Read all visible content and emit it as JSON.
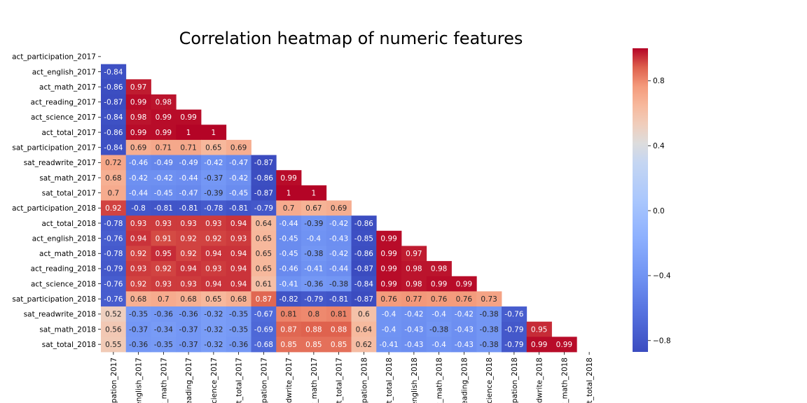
{
  "chart_data": {
    "type": "heatmap",
    "title": "Correlation heatmap of numeric features",
    "xlabel": "",
    "ylabel": "",
    "mask": "upper-triangle-and-diagonal",
    "row_labels": [
      "act_participation_2017",
      "act_english_2017",
      "act_math_2017",
      "act_reading_2017",
      "act_science_2017",
      "act_total_2017",
      "sat_participation_2017",
      "sat_readwrite_2017",
      "sat_math_2017",
      "sat_total_2017",
      "act_participation_2018",
      "act_total_2018",
      "act_english_2018",
      "act_math_2018",
      "act_reading_2018",
      "act_science_2018",
      "sat_participation_2018",
      "sat_readwrite_2018",
      "sat_math_2018",
      "sat_total_2018"
    ],
    "col_labels": [
      "pation_2017",
      "english_2017",
      "t_math_2017",
      "eading_2017",
      "science_2017",
      "t_total_2017",
      "pation_2017",
      "dwrite_2017",
      "t_math_2017",
      "t_total_2017",
      "pation_2018",
      "t_total_2018",
      "english_2018",
      "t_math_2018",
      "eading_2018",
      "science_2018",
      "pation_2018",
      "dwrite_2018",
      "t_math_2018",
      "t_total_2018"
    ],
    "values": [
      [],
      [
        -0.84
      ],
      [
        -0.86,
        0.97
      ],
      [
        -0.87,
        0.99,
        0.98
      ],
      [
        -0.84,
        0.98,
        0.99,
        0.99
      ],
      [
        -0.86,
        0.99,
        0.99,
        1,
        1
      ],
      [
        -0.84,
        0.69,
        0.71,
        0.71,
        0.65,
        0.69
      ],
      [
        0.72,
        -0.46,
        -0.49,
        -0.49,
        -0.42,
        -0.47,
        -0.87
      ],
      [
        0.68,
        -0.42,
        -0.42,
        -0.44,
        -0.37,
        -0.42,
        -0.86,
        0.99
      ],
      [
        0.7,
        -0.44,
        -0.45,
        -0.47,
        -0.39,
        -0.45,
        -0.87,
        1,
        1
      ],
      [
        0.92,
        -0.8,
        -0.81,
        -0.81,
        -0.78,
        -0.81,
        -0.79,
        0.7,
        0.67,
        0.69
      ],
      [
        -0.78,
        0.93,
        0.93,
        0.93,
        0.93,
        0.94,
        0.64,
        -0.44,
        -0.39,
        -0.42,
        -0.86
      ],
      [
        -0.76,
        0.94,
        0.91,
        0.92,
        0.92,
        0.93,
        0.65,
        -0.45,
        -0.4,
        -0.43,
        -0.85,
        0.99
      ],
      [
        -0.78,
        0.92,
        0.95,
        0.92,
        0.94,
        0.94,
        0.65,
        -0.45,
        -0.38,
        -0.42,
        -0.86,
        0.99,
        0.97
      ],
      [
        -0.79,
        0.93,
        0.92,
        0.94,
        0.93,
        0.94,
        0.65,
        -0.46,
        -0.41,
        -0.44,
        -0.87,
        0.99,
        0.98,
        0.98
      ],
      [
        -0.76,
        0.92,
        0.93,
        0.93,
        0.94,
        0.94,
        0.61,
        -0.41,
        -0.36,
        -0.38,
        -0.84,
        0.99,
        0.98,
        0.99,
        0.99
      ],
      [
        -0.76,
        0.68,
        0.7,
        0.68,
        0.65,
        0.68,
        0.87,
        -0.82,
        -0.79,
        -0.81,
        -0.87,
        0.76,
        0.77,
        0.76,
        0.76,
        0.73
      ],
      [
        0.52,
        -0.35,
        -0.36,
        -0.36,
        -0.32,
        -0.35,
        -0.67,
        0.81,
        0.8,
        0.81,
        0.6,
        -0.4,
        -0.42,
        -0.4,
        -0.42,
        -0.38,
        -0.76
      ],
      [
        0.56,
        -0.37,
        -0.34,
        -0.37,
        -0.32,
        -0.35,
        -0.69,
        0.87,
        0.88,
        0.88,
        0.64,
        -0.4,
        -0.43,
        -0.38,
        -0.43,
        -0.38,
        -0.79,
        0.95
      ],
      [
        0.55,
        -0.36,
        -0.35,
        -0.37,
        -0.32,
        -0.36,
        -0.68,
        0.85,
        0.85,
        0.85,
        0.62,
        -0.41,
        -0.43,
        -0.4,
        -0.43,
        -0.38,
        -0.79,
        0.99,
        0.99
      ]
    ],
    "colormap": "coolwarm",
    "colorbar": {
      "min": -0.87,
      "max": 1.0,
      "ticks": [
        -0.8,
        -0.4,
        0.0,
        0.4,
        0.8
      ],
      "tick_labels": [
        "−0.8",
        "−0.4",
        "0.0",
        "0.4",
        "0.8"
      ]
    }
  }
}
